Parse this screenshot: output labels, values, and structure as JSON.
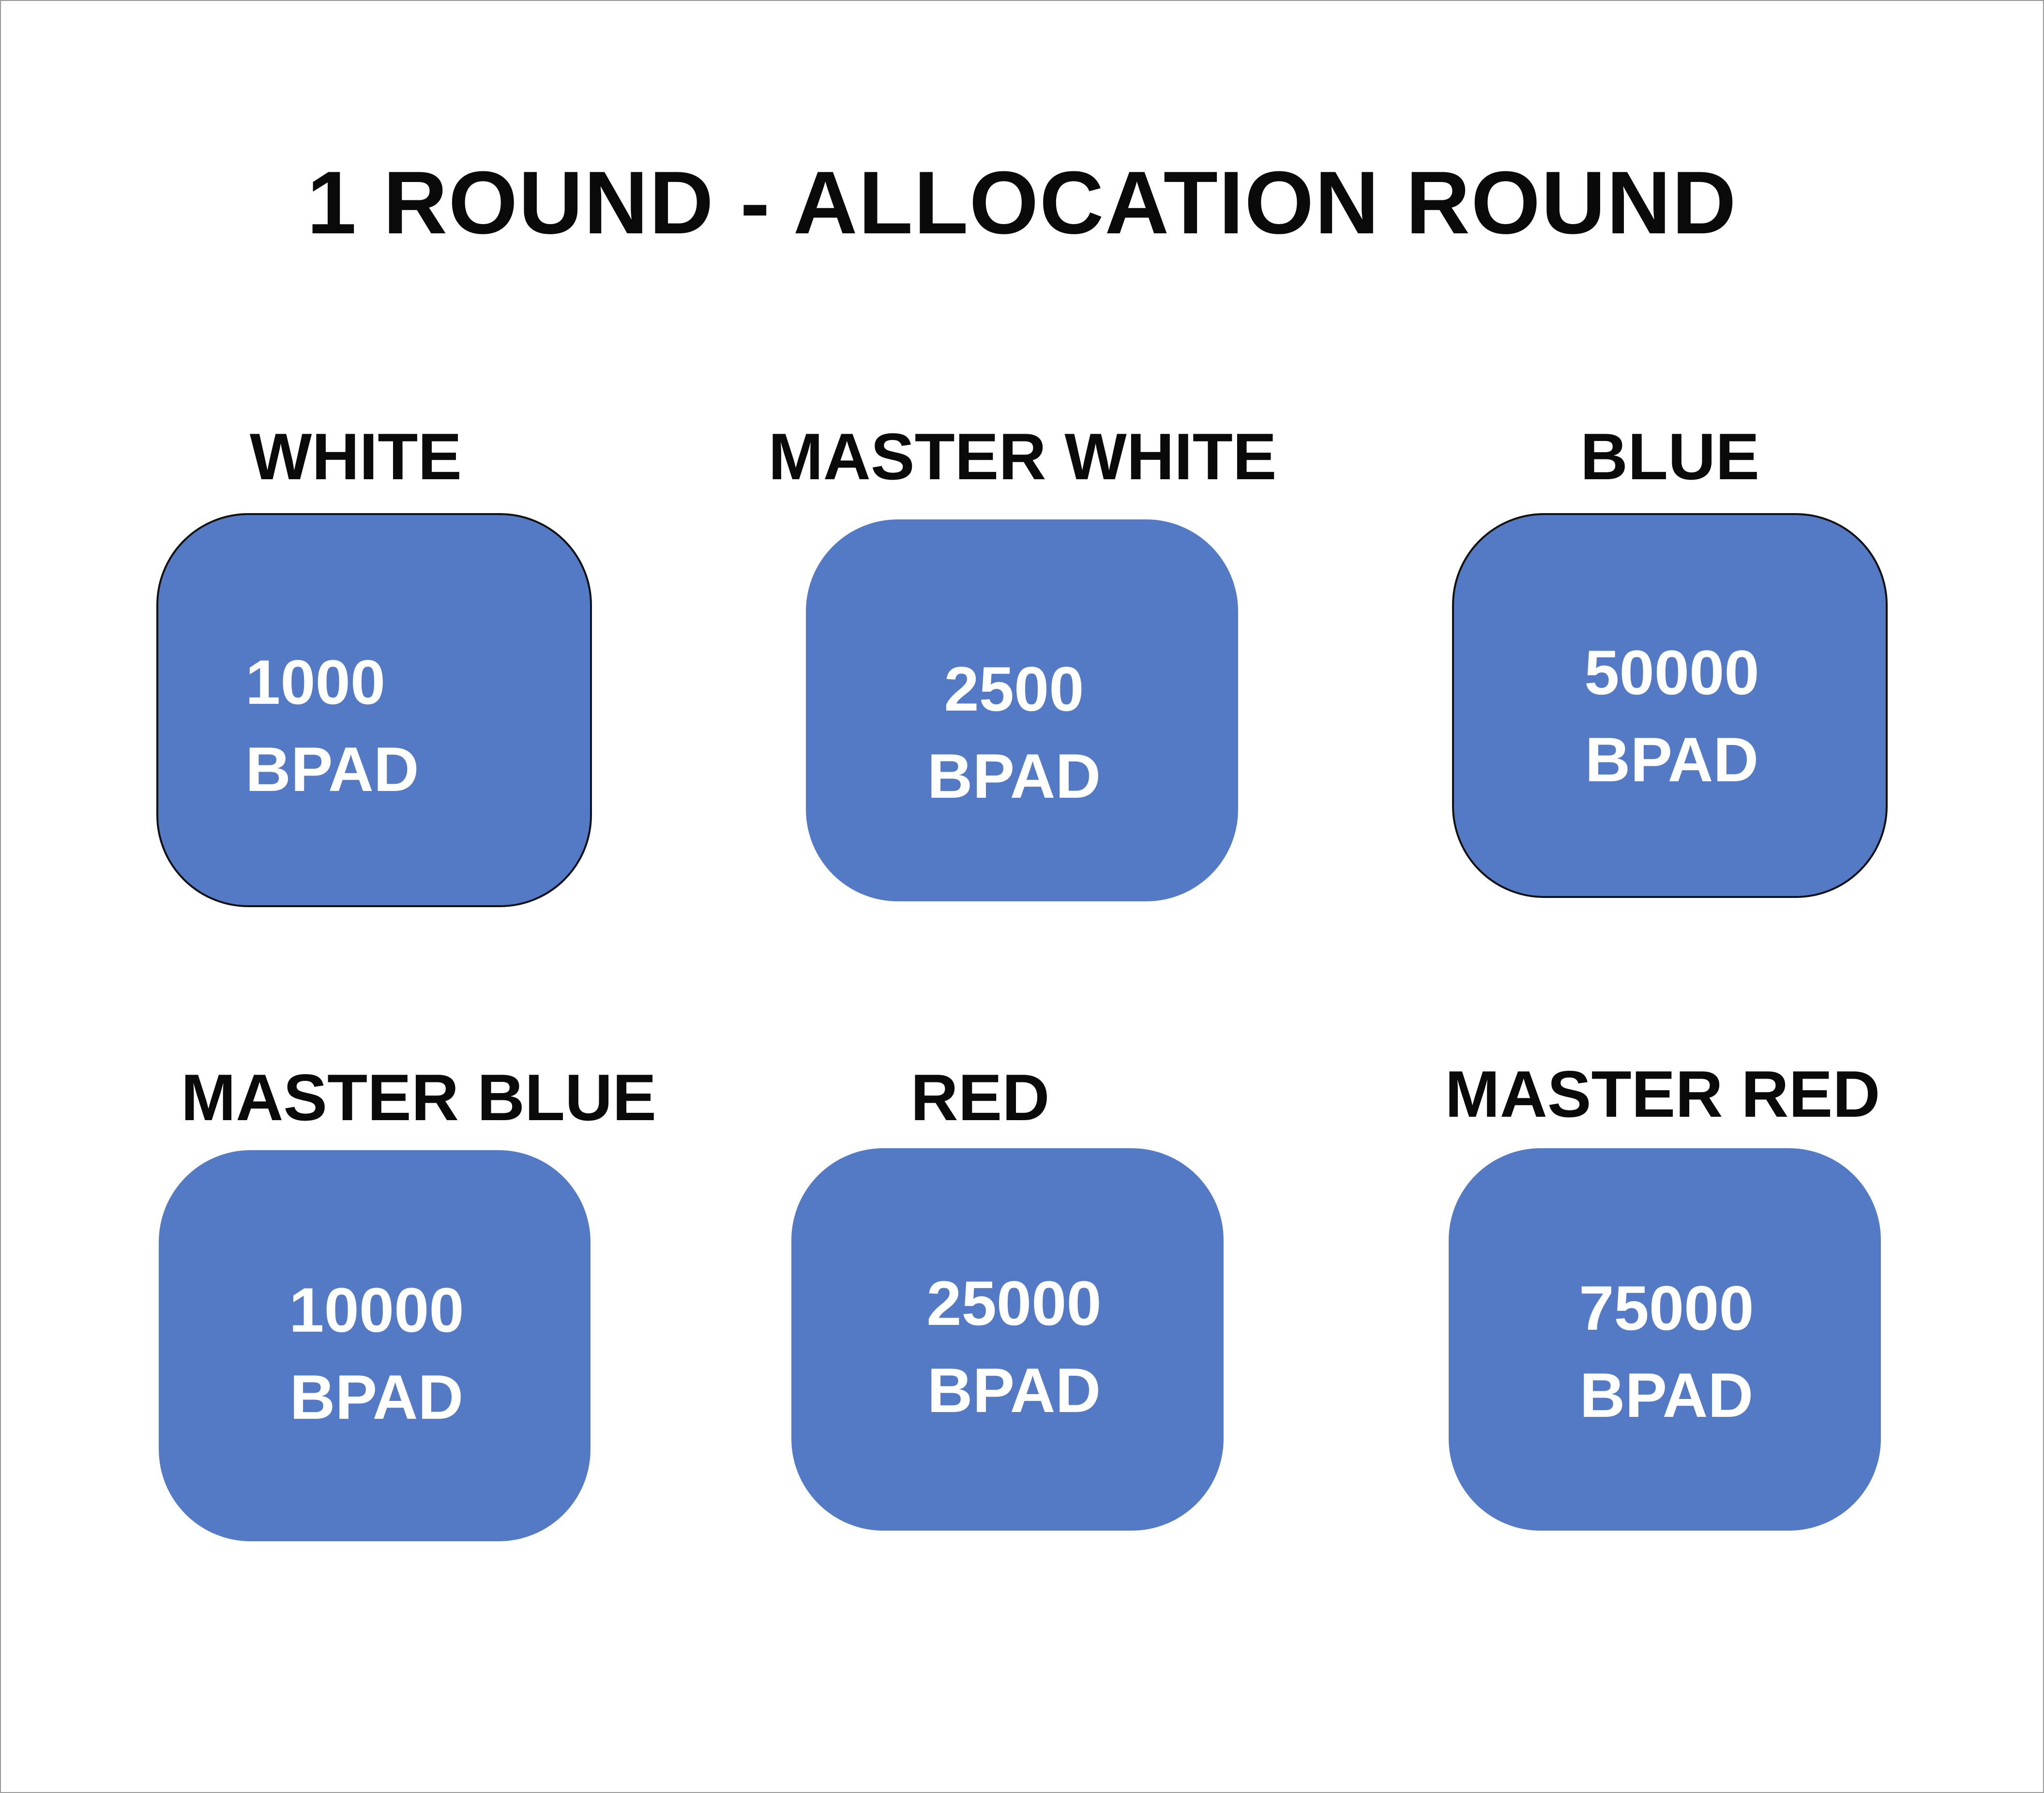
{
  "title": "1 ROUND - ALLOCATION ROUND",
  "tiers": [
    {
      "label": "WHITE",
      "amount": "1000",
      "unit": "BPAD"
    },
    {
      "label": "MASTER WHITE",
      "amount": "2500",
      "unit": "BPAD"
    },
    {
      "label": "BLUE",
      "amount": "50000",
      "unit": "BPAD"
    },
    {
      "label": "MASTER BLUE",
      "amount": "10000",
      "unit": "BPAD"
    },
    {
      "label": "RED",
      "amount": "25000",
      "unit": "BPAD"
    },
    {
      "label": "MASTER RED",
      "amount": "75000",
      "unit": "BPAD"
    }
  ],
  "colors": {
    "card_fill": "#547ac5",
    "card_text": "#ffffff",
    "heading_text": "#0a0a0a",
    "background": "#ffffff"
  }
}
